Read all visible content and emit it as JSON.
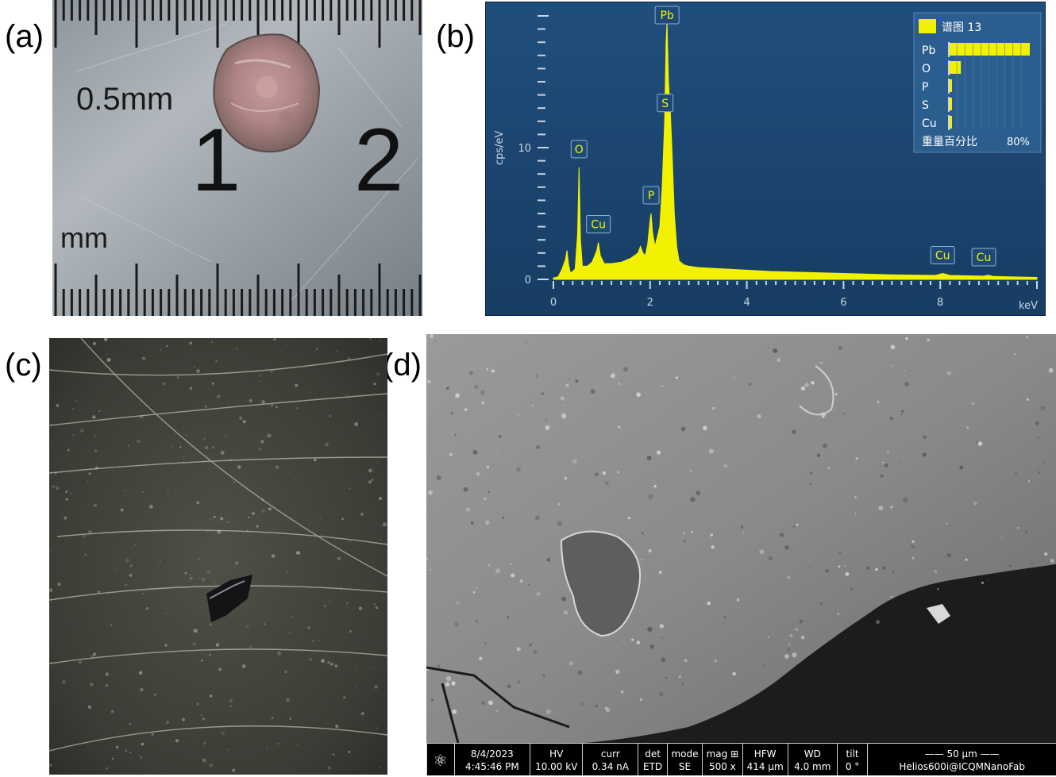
{
  "labels": {
    "a": "(a)",
    "b": "(b)",
    "c": "(c)",
    "d": "(d)"
  },
  "panel_a": {
    "scale_top": "0.5mm",
    "scale_bottom": "mm",
    "num_1": "1",
    "num_2": "2"
  },
  "chart_data": {
    "type": "line",
    "ylabel": "cps/eV",
    "xlabel": "keV",
    "xlim": [
      0,
      10
    ],
    "ylim": [
      0,
      20
    ],
    "x_ticks": [
      "0",
      "2",
      "4",
      "6",
      "8"
    ],
    "y_ticks": [
      "0",
      "10"
    ],
    "spectrum": {
      "x": [
        0.0,
        0.1,
        0.18,
        0.25,
        0.28,
        0.31,
        0.35,
        0.4,
        0.45,
        0.5,
        0.53,
        0.56,
        0.6,
        0.7,
        0.8,
        0.9,
        0.93,
        0.97,
        1.05,
        1.2,
        1.4,
        1.6,
        1.75,
        1.8,
        1.85,
        1.9,
        1.95,
        2.0,
        2.02,
        2.05,
        2.1,
        2.2,
        2.25,
        2.3,
        2.33,
        2.35,
        2.38,
        2.42,
        2.45,
        2.5,
        2.55,
        2.6,
        2.7,
        2.8,
        3.0,
        3.5,
        4.0,
        4.5,
        5.0,
        6.0,
        7.0,
        7.9,
        8.05,
        8.2,
        8.9,
        9.0,
        9.1,
        10.0
      ],
      "y": [
        0.1,
        0.2,
        0.8,
        1.5,
        2.2,
        1.2,
        0.5,
        0.6,
        0.8,
        3.5,
        8.5,
        3.0,
        1.0,
        1.0,
        1.3,
        2.2,
        2.8,
        1.8,
        1.2,
        1.2,
        1.3,
        1.6,
        2.0,
        2.5,
        2.0,
        1.8,
        2.7,
        4.5,
        5.0,
        3.6,
        2.5,
        4.0,
        7.0,
        12.0,
        18.0,
        19.5,
        15.0,
        12.5,
        10.0,
        5.0,
        2.5,
        1.4,
        1.1,
        1.0,
        0.9,
        0.8,
        0.7,
        0.6,
        0.55,
        0.45,
        0.35,
        0.3,
        0.45,
        0.3,
        0.25,
        0.32,
        0.22,
        0.15
      ]
    },
    "peak_labels": [
      {
        "label": "O",
        "x": 0.53,
        "y": 8.5
      },
      {
        "label": "Cu",
        "x": 0.93,
        "y": 2.8
      },
      {
        "label": "P",
        "x": 2.02,
        "y": 5.0
      },
      {
        "label": "S",
        "x": 2.31,
        "y": 12.0
      },
      {
        "label": "Pb",
        "x": 2.35,
        "y": 19.5
      },
      {
        "label": "Cu",
        "x": 8.05,
        "y": 0.45
      },
      {
        "label": "Cu",
        "x": 8.9,
        "y": 0.3
      }
    ],
    "legend": {
      "series_name": "谱图 13",
      "elements": [
        "Pb",
        "O",
        "P",
        "S",
        "Cu"
      ],
      "values": [
        100,
        14,
        2,
        2,
        2
      ],
      "footer_label": "重量百分比",
      "footer_value": "80%",
      "placement": "top-right"
    },
    "colors": {
      "background": "#1e4a77",
      "spectrum": "#f2f200",
      "axis": "#c8d6e6",
      "legend_bg": "#2b5d8e"
    }
  },
  "panel_d": {
    "hud": [
      {
        "label": "",
        "value": ""
      },
      {
        "label": "8/4/2023",
        "value": "4:45:46 PM"
      },
      {
        "label": "HV",
        "value": "10.00 kV"
      },
      {
        "label": "curr",
        "value": "0.34 nA"
      },
      {
        "label": "det",
        "value": "ETD"
      },
      {
        "label": "mode",
        "value": "SE"
      },
      {
        "label": "mag ⊞",
        "value": "500 x"
      },
      {
        "label": "HFW",
        "value": "414 µm"
      },
      {
        "label": "WD",
        "value": "4.0 mm"
      },
      {
        "label": "tilt",
        "value": "0 °"
      },
      {
        "label": "50 µm",
        "value": "Helios600i@ICQMNanoFab"
      }
    ]
  }
}
